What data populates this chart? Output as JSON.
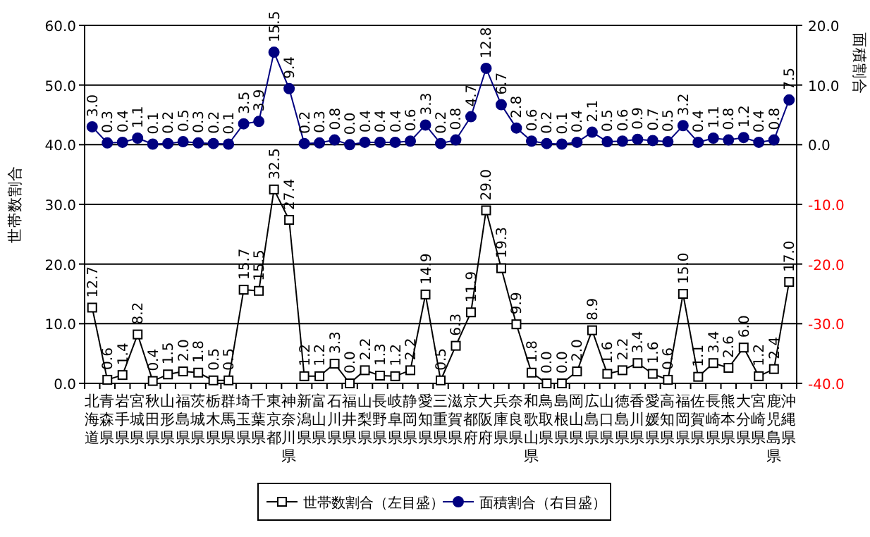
{
  "chart_data": {
    "type": "line",
    "ylabel": "世帯数割合",
    "y2label": "面積割合",
    "categories": [
      "北海道",
      "青森県",
      "岩手県",
      "宮城県",
      "秋田県",
      "山形県",
      "福島県",
      "茨城県",
      "栃木県",
      "群馬県",
      "埼玉県",
      "千葉県",
      "東京都",
      "神奈川県",
      "新潟県",
      "富山県",
      "石川県",
      "福井県",
      "山梨県",
      "長野県",
      "岐阜県",
      "静岡県",
      "愛知県",
      "三重県",
      "滋賀県",
      "京都府",
      "大阪府",
      "兵庫県",
      "奈良県",
      "和歌山県",
      "鳥取県",
      "島根県",
      "岡山県",
      "広島県",
      "山口県",
      "徳島県",
      "香川県",
      "愛媛県",
      "高知県",
      "福岡県",
      "佐賀県",
      "長崎県",
      "熊本県",
      "大分県",
      "宮崎県",
      "鹿児島県",
      "沖縄県"
    ],
    "series": [
      {
        "name": "世帯数割合（左目盛）",
        "color": "#000000",
        "marker": "square",
        "values": [
          12.7,
          0.6,
          1.4,
          8.2,
          0.4,
          1.5,
          2.0,
          1.8,
          0.5,
          0.5,
          15.7,
          15.5,
          32.5,
          27.4,
          1.2,
          1.2,
          3.3,
          0.0,
          2.2,
          1.3,
          1.2,
          2.2,
          14.9,
          0.5,
          6.3,
          11.9,
          29.0,
          19.3,
          9.9,
          1.8,
          0.0,
          0.0,
          2.0,
          8.9,
          1.6,
          2.2,
          3.4,
          1.6,
          0.6,
          15.0,
          1.1,
          3.4,
          2.6,
          6.0,
          1.2,
          2.4,
          17.0
        ],
        "value_labels": [
          "12.7",
          "0.6",
          "1.4",
          "8.2",
          "0.4",
          "1.5",
          "2.0",
          "1.8",
          "0.5",
          "0.5",
          "15.7",
          "15.5",
          "32.5",
          "27.4",
          "1.2",
          "1.2",
          "3.3",
          "0.0",
          "2.2",
          "1.3",
          "1.2",
          "2.2",
          "14.9",
          "0.5",
          "6.3",
          "11.9",
          "29.0",
          "19.3",
          "9.9",
          "1.8",
          "0.0",
          "0.0",
          "2.0",
          "8.9",
          "1.6",
          "2.2",
          "3.4",
          "1.6",
          "0.6",
          "15.0",
          "1.1",
          "3.4",
          "2.6",
          "6.0",
          "1.2",
          "2.4",
          "17.0"
        ]
      },
      {
        "name": "面積割合（右目盛）",
        "color": "#000080",
        "marker": "circle",
        "axis": "y2",
        "values": [
          3.0,
          0.3,
          0.4,
          1.1,
          0.1,
          0.2,
          0.5,
          0.3,
          0.2,
          0.1,
          3.5,
          3.9,
          15.5,
          9.4,
          0.2,
          0.3,
          0.8,
          0.0,
          0.4,
          0.4,
          0.4,
          0.6,
          3.3,
          0.2,
          0.8,
          4.7,
          12.8,
          6.7,
          2.8,
          0.6,
          0.2,
          0.1,
          0.4,
          2.1,
          0.5,
          0.6,
          0.9,
          0.7,
          0.5,
          3.2,
          0.4,
          1.1,
          0.8,
          1.2,
          0.4,
          0.8,
          7.5
        ],
        "value_labels": [
          "3.0",
          "0.3",
          "0.4",
          "1.1",
          "0.1",
          "0.2",
          "0.5",
          "0.3",
          "0.2",
          "0.1",
          "3.5",
          "3.9",
          "15.5",
          "9.4",
          "0.2",
          "0.3",
          "0.8",
          "0.0",
          "0.4",
          "0.4",
          "0.4",
          "0.6",
          "3.3",
          "0.2",
          "0.8",
          "4.7",
          "12.8",
          "6.7",
          "2.8",
          "0.6",
          "0.2",
          "0.1",
          "0.4",
          "2.1",
          "0.5",
          "0.6",
          "0.9",
          "0.7",
          "0.5",
          "3.2",
          "0.4",
          "1.1",
          "0.8",
          "1.2",
          "0.4",
          "0.8",
          "7.5"
        ]
      }
    ],
    "ylim": [
      0,
      60
    ],
    "yticks": [
      {
        "value": 0,
        "label": "0.0"
      },
      {
        "value": 10,
        "label": "10.0"
      },
      {
        "value": 20,
        "label": "20.0"
      },
      {
        "value": 30,
        "label": "30.0"
      },
      {
        "value": 40,
        "label": "40.0"
      },
      {
        "value": 50,
        "label": "50.0"
      },
      {
        "value": 60,
        "label": "60.0"
      }
    ],
    "y2lim": [
      -40,
      20
    ],
    "y2ticks": [
      {
        "value": -40,
        "label": "-40.0"
      },
      {
        "value": -30,
        "label": "-30.0"
      },
      {
        "value": -20,
        "label": "-20.0"
      },
      {
        "value": -10,
        "label": "-10.0"
      },
      {
        "value": 0,
        "label": "0.0"
      },
      {
        "value": 10,
        "label": "10.0"
      },
      {
        "value": 20,
        "label": "20.0"
      }
    ],
    "grid": "y",
    "legend": "bottom",
    "line_style": "solid"
  }
}
